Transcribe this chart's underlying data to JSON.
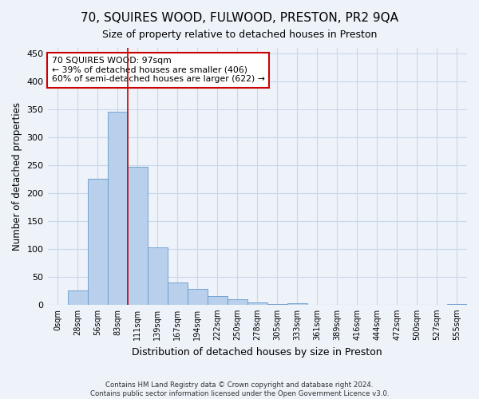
{
  "title1": "70, SQUIRES WOOD, FULWOOD, PRESTON, PR2 9QA",
  "title2": "Size of property relative to detached houses in Preston",
  "xlabel": "Distribution of detached houses by size in Preston",
  "ylabel": "Number of detached properties",
  "footer1": "Contains HM Land Registry data © Crown copyright and database right 2024.",
  "footer2": "Contains public sector information licensed under the Open Government Licence v3.0.",
  "bar_labels": [
    "0sqm",
    "28sqm",
    "56sqm",
    "83sqm",
    "111sqm",
    "139sqm",
    "167sqm",
    "194sqm",
    "222sqm",
    "250sqm",
    "278sqm",
    "305sqm",
    "333sqm",
    "361sqm",
    "389sqm",
    "416sqm",
    "444sqm",
    "472sqm",
    "500sqm",
    "527sqm",
    "555sqm"
  ],
  "bar_values": [
    0,
    26,
    226,
    345,
    247,
    102,
    40,
    29,
    15,
    10,
    4,
    1,
    3,
    0,
    0,
    0,
    0,
    0,
    0,
    0,
    1
  ],
  "bar_color": "#b8d0eb",
  "bar_edge_color": "#6699cc",
  "grid_color": "#c8d8ec",
  "background_color": "#eef2f9",
  "vline_x": 4.0,
  "vline_color": "#cc0000",
  "annotation_line1": "70 SQUIRES WOOD: 97sqm",
  "annotation_line2": "← 39% of detached houses are smaller (406)",
  "annotation_line3": "60% of semi-detached houses are larger (622) →",
  "annotation_box_color": "#ffffff",
  "annotation_box_edge": "#cc0000",
  "ylim": [
    0,
    460
  ],
  "yticks": [
    0,
    50,
    100,
    150,
    200,
    250,
    300,
    350,
    400,
    450
  ]
}
